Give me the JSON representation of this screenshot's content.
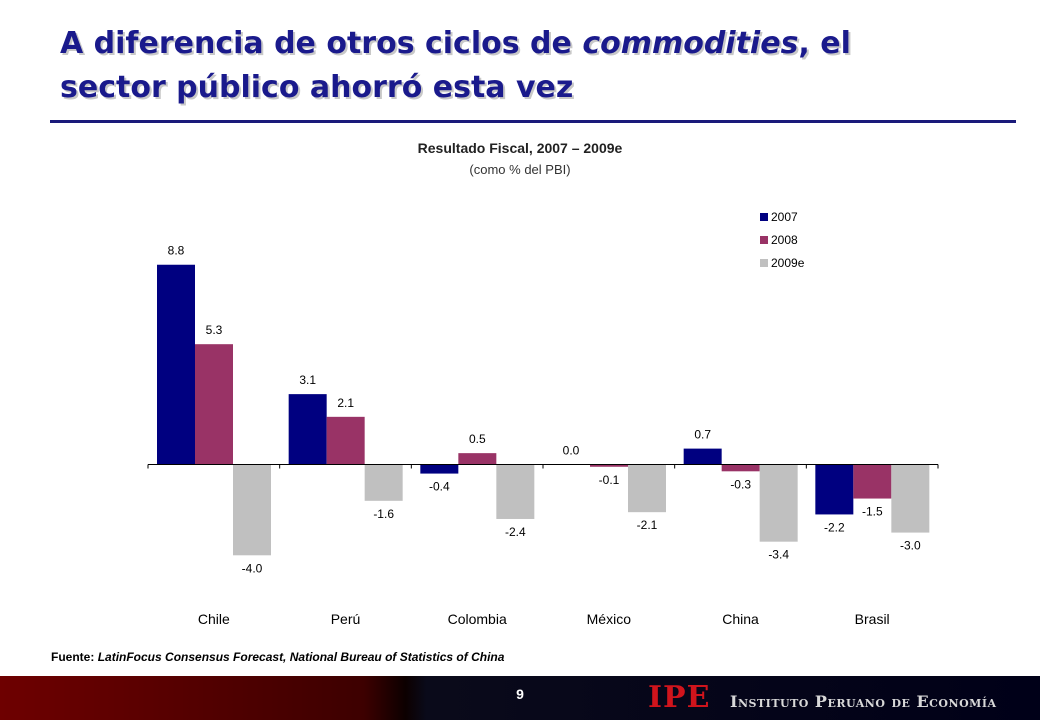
{
  "slide": {
    "title_line1_a": "A diferencia de otros ciclos de ",
    "title_line1_em": "commodities",
    "title_line1_b": ", el",
    "title_line2": "sector público ahorró esta vez",
    "source_label": "Fuente:",
    "source_text": "LatinFocus Consensus Forecast, National Bureau of Statistics of China",
    "page_number": "9",
    "logo": "IPE",
    "logo_text": "Instituto Peruano de Economía"
  },
  "chart_data": {
    "type": "bar",
    "title": "Resultado Fiscal, 2007 – 2009e",
    "subtitle": "(como % del PBI)",
    "categories": [
      "Chile",
      "Perú",
      "Colombia",
      "México",
      "China",
      "Brasil"
    ],
    "series": [
      {
        "name": "2007",
        "color": "#000080",
        "values": [
          8.8,
          3.1,
          -0.4,
          0.0,
          0.7,
          -2.2
        ],
        "labels": [
          "8.8",
          "3.1",
          "-0.4",
          "0.0",
          "0.7",
          "-2.2"
        ]
      },
      {
        "name": "2008",
        "color": "#993366",
        "values": [
          5.3,
          2.1,
          0.5,
          -0.1,
          -0.3,
          -1.5
        ],
        "labels": [
          "5.3",
          "2.1",
          "0.5",
          "-0.1",
          "-0.3",
          "-1.5"
        ]
      },
      {
        "name": "2009e",
        "color": "#c0c0c0",
        "values": [
          -4.0,
          -1.6,
          -2.4,
          -2.1,
          -3.4,
          -3.0
        ],
        "labels": [
          "-4.0",
          "-1.6",
          "-2.4",
          "-2.1",
          "-3.4",
          "-3.0"
        ]
      }
    ],
    "legend_position": "top-right",
    "grid": false
  }
}
